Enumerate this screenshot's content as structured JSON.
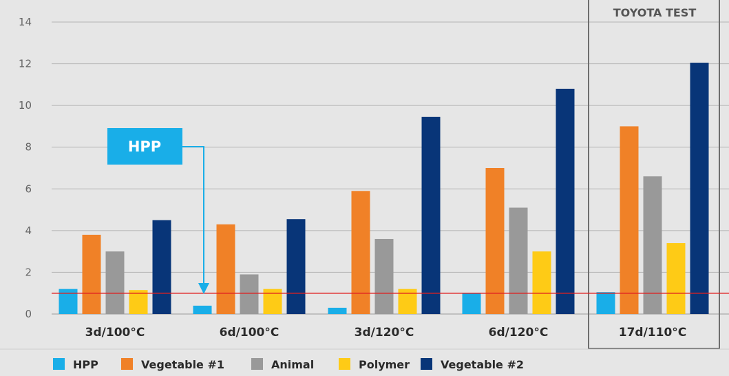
{
  "chart_data": {
    "type": "bar",
    "categories": [
      "3d/100°C",
      "6d/100°C",
      "3d/120°C",
      "6d/120°C",
      "17d/110°C"
    ],
    "series": [
      {
        "name": "HPP",
        "color": "#19aee8",
        "values": [
          1.2,
          0.4,
          0.3,
          1.0,
          1.05
        ]
      },
      {
        "name": "Vegetable #1",
        "color": "#f08127",
        "values": [
          3.8,
          4.3,
          5.9,
          7.0,
          9.0
        ]
      },
      {
        "name": "Animal",
        "color": "#999999",
        "values": [
          3.0,
          1.9,
          3.6,
          5.1,
          6.6
        ]
      },
      {
        "name": "Polymer",
        "color": "#fecb16",
        "values": [
          1.15,
          1.2,
          1.2,
          3.0,
          3.4
        ]
      },
      {
        "name": "Vegetable #2",
        "color": "#083578",
        "values": [
          4.5,
          4.55,
          9.45,
          10.8,
          12.05
        ]
      }
    ],
    "ylim": [
      0,
      14
    ],
    "yticks": [
      0,
      2,
      4,
      6,
      8,
      10,
      12,
      14
    ],
    "reference_line": {
      "value": 1.0,
      "color": "#e02020"
    },
    "grid": true,
    "legend_position": "bottom",
    "highlight_box": {
      "label": "TOYOTA TEST",
      "category": "17d/110°C"
    },
    "callout": {
      "label": "HPP",
      "color": "#19aee8"
    }
  }
}
